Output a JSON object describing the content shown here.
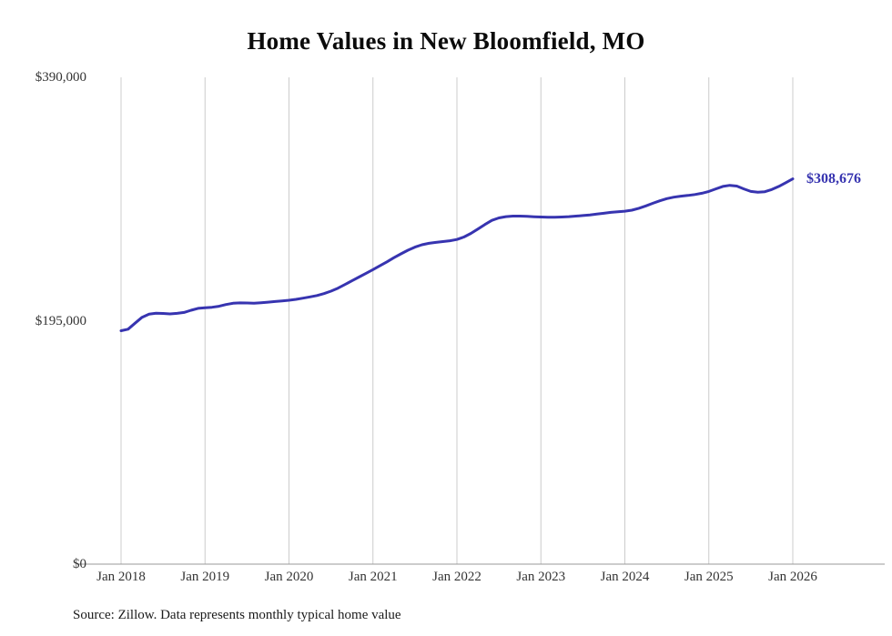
{
  "chart_data": {
    "type": "line",
    "title": "Home Values in New Bloomfield, MO",
    "xlabel": "",
    "ylabel": "",
    "ylim": [
      0,
      390000
    ],
    "grid": "vertical-only",
    "legend": "none",
    "line_color": "#3734b0",
    "grid_color": "#cccccc",
    "axis_color": "#999999",
    "x_tick_labels": [
      "Jan 2018",
      "Jan 2019",
      "Jan 2020",
      "Jan 2021",
      "Jan 2022",
      "Jan 2023",
      "Jan 2024",
      "Jan 2025",
      "Jan 2026"
    ],
    "y_ticks": [
      {
        "label": "$390,000",
        "value": 390000
      },
      {
        "label": "$195,000",
        "value": 195000
      },
      {
        "label": "$0",
        "value": 0
      }
    ],
    "x_frequency": "monthly",
    "x_range": [
      "Jan 2018",
      "Jan 2026"
    ],
    "values": [
      187000,
      188200,
      193000,
      197800,
      200300,
      201000,
      200800,
      200500,
      200900,
      201600,
      203400,
      204900,
      205400,
      205800,
      206600,
      208000,
      209000,
      209300,
      209200,
      209100,
      209400,
      209900,
      210400,
      210900,
      211400,
      212100,
      213100,
      214100,
      215200,
      216700,
      218700,
      221100,
      224000,
      227000,
      230000,
      233000,
      236000,
      239000,
      242200,
      245500,
      248600,
      251500,
      254000,
      255900,
      257000,
      257800,
      258400,
      259100,
      260100,
      262100,
      265000,
      268500,
      272100,
      275400,
      277400,
      278400,
      278800,
      278800,
      278600,
      278300,
      278100,
      277900,
      277900,
      278100,
      278400,
      278800,
      279300,
      279800,
      280400,
      281100,
      281800,
      282300,
      282800,
      283600,
      285100,
      287000,
      289100,
      291100,
      292800,
      294000,
      294800,
      295400,
      296100,
      297100,
      298600,
      300600,
      302600,
      303500,
      302900,
      300600,
      298600,
      297900,
      298400,
      300100,
      302600,
      305600,
      308676
    ],
    "end_value": 308676,
    "end_label": "$308,676"
  },
  "source_note": "Source: Zillow. Data represents monthly typical home value"
}
